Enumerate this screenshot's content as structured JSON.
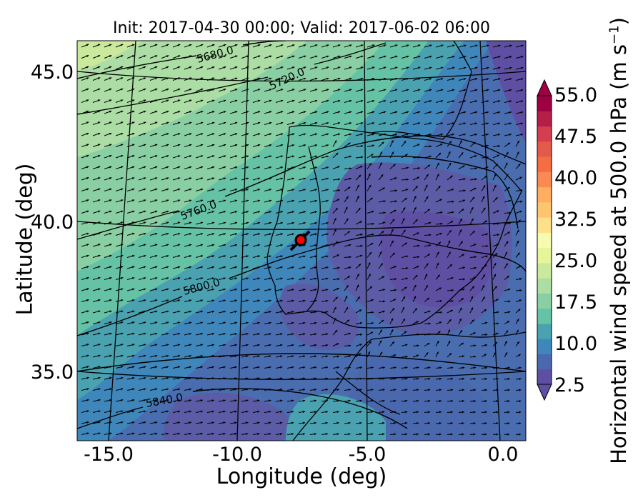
{
  "title": "Init: 2017-04-30 00:00; Valid: 2017-06-02 06:00",
  "xlabel": "Longitude (deg)",
  "ylabel": "Latitude (deg)",
  "colorbar": {
    "label": "Horizontal wind speed at 500.0 hPa (m s$^{-1}$)",
    "label_text": "Horizontal wind speed at 500.0 hPa (m s",
    "label_sup": "−1",
    "label_end": ")",
    "ticks": [
      "2.5",
      "10.0",
      "17.5",
      "25.0",
      "32.5",
      "40.0",
      "47.5",
      "55.0"
    ],
    "colors": [
      "#5e4fa2",
      "#4a68ad",
      "#3f87bb",
      "#4aa2b1",
      "#66c2a5",
      "#8acfa4",
      "#abdda4",
      "#cbe99d",
      "#e6f598",
      "#f5fbb0",
      "#fee08b",
      "#fdc56f",
      "#fdae61",
      "#f88a52",
      "#f46d43",
      "#e25a4a",
      "#d53e4f",
      "#b41f48",
      "#9e0142"
    ],
    "extend": "both"
  },
  "chart_data": {
    "type": "map",
    "x_ticks": [
      "-15.0",
      "-10.0",
      "-5.0",
      "0.0"
    ],
    "y_ticks": [
      "45.0",
      "40.0",
      "35.0"
    ],
    "xlim": [
      -15.8,
      0.3
    ],
    "ylim": [
      32.5,
      46.0
    ],
    "contour_labels": [
      "5680.0",
      "5720.0",
      "5760.0",
      "5800.0",
      "5840.0"
    ],
    "field": "wind speed at 500 hPa with geopotential height contours and wind vectors",
    "marker": {
      "lon": -7.6,
      "lat": 39.4,
      "color": "#ff0000"
    }
  }
}
